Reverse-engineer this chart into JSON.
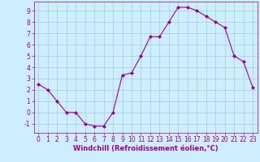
{
  "x": [
    0,
    1,
    2,
    3,
    4,
    5,
    6,
    7,
    8,
    9,
    10,
    11,
    12,
    13,
    14,
    15,
    16,
    17,
    18,
    19,
    20,
    21,
    22,
    23
  ],
  "y": [
    2.5,
    2.0,
    1.0,
    0.0,
    0.0,
    -1.0,
    -1.2,
    -1.2,
    0.0,
    3.3,
    3.5,
    5.0,
    6.7,
    6.7,
    8.0,
    9.3,
    9.3,
    9.0,
    8.5,
    8.0,
    7.5,
    5.0,
    4.5,
    2.2
  ],
  "line_color": "#990099",
  "marker": "D",
  "marker_size": 2.0,
  "bg_color": "#cceeff",
  "grid_color": "#aacccc",
  "xlabel": "Windchill (Refroidissement éolien,°C)",
  "xlabel_fontsize": 6.0,
  "tick_fontsize": 5.5,
  "ylim": [
    -1.8,
    9.8
  ],
  "xlim": [
    -0.5,
    23.5
  ],
  "yticks": [
    -1,
    0,
    1,
    2,
    3,
    4,
    5,
    6,
    7,
    8,
    9
  ],
  "xticks": [
    0,
    1,
    2,
    3,
    4,
    5,
    6,
    7,
    8,
    9,
    10,
    11,
    12,
    13,
    14,
    15,
    16,
    17,
    18,
    19,
    20,
    21,
    22,
    23
  ]
}
